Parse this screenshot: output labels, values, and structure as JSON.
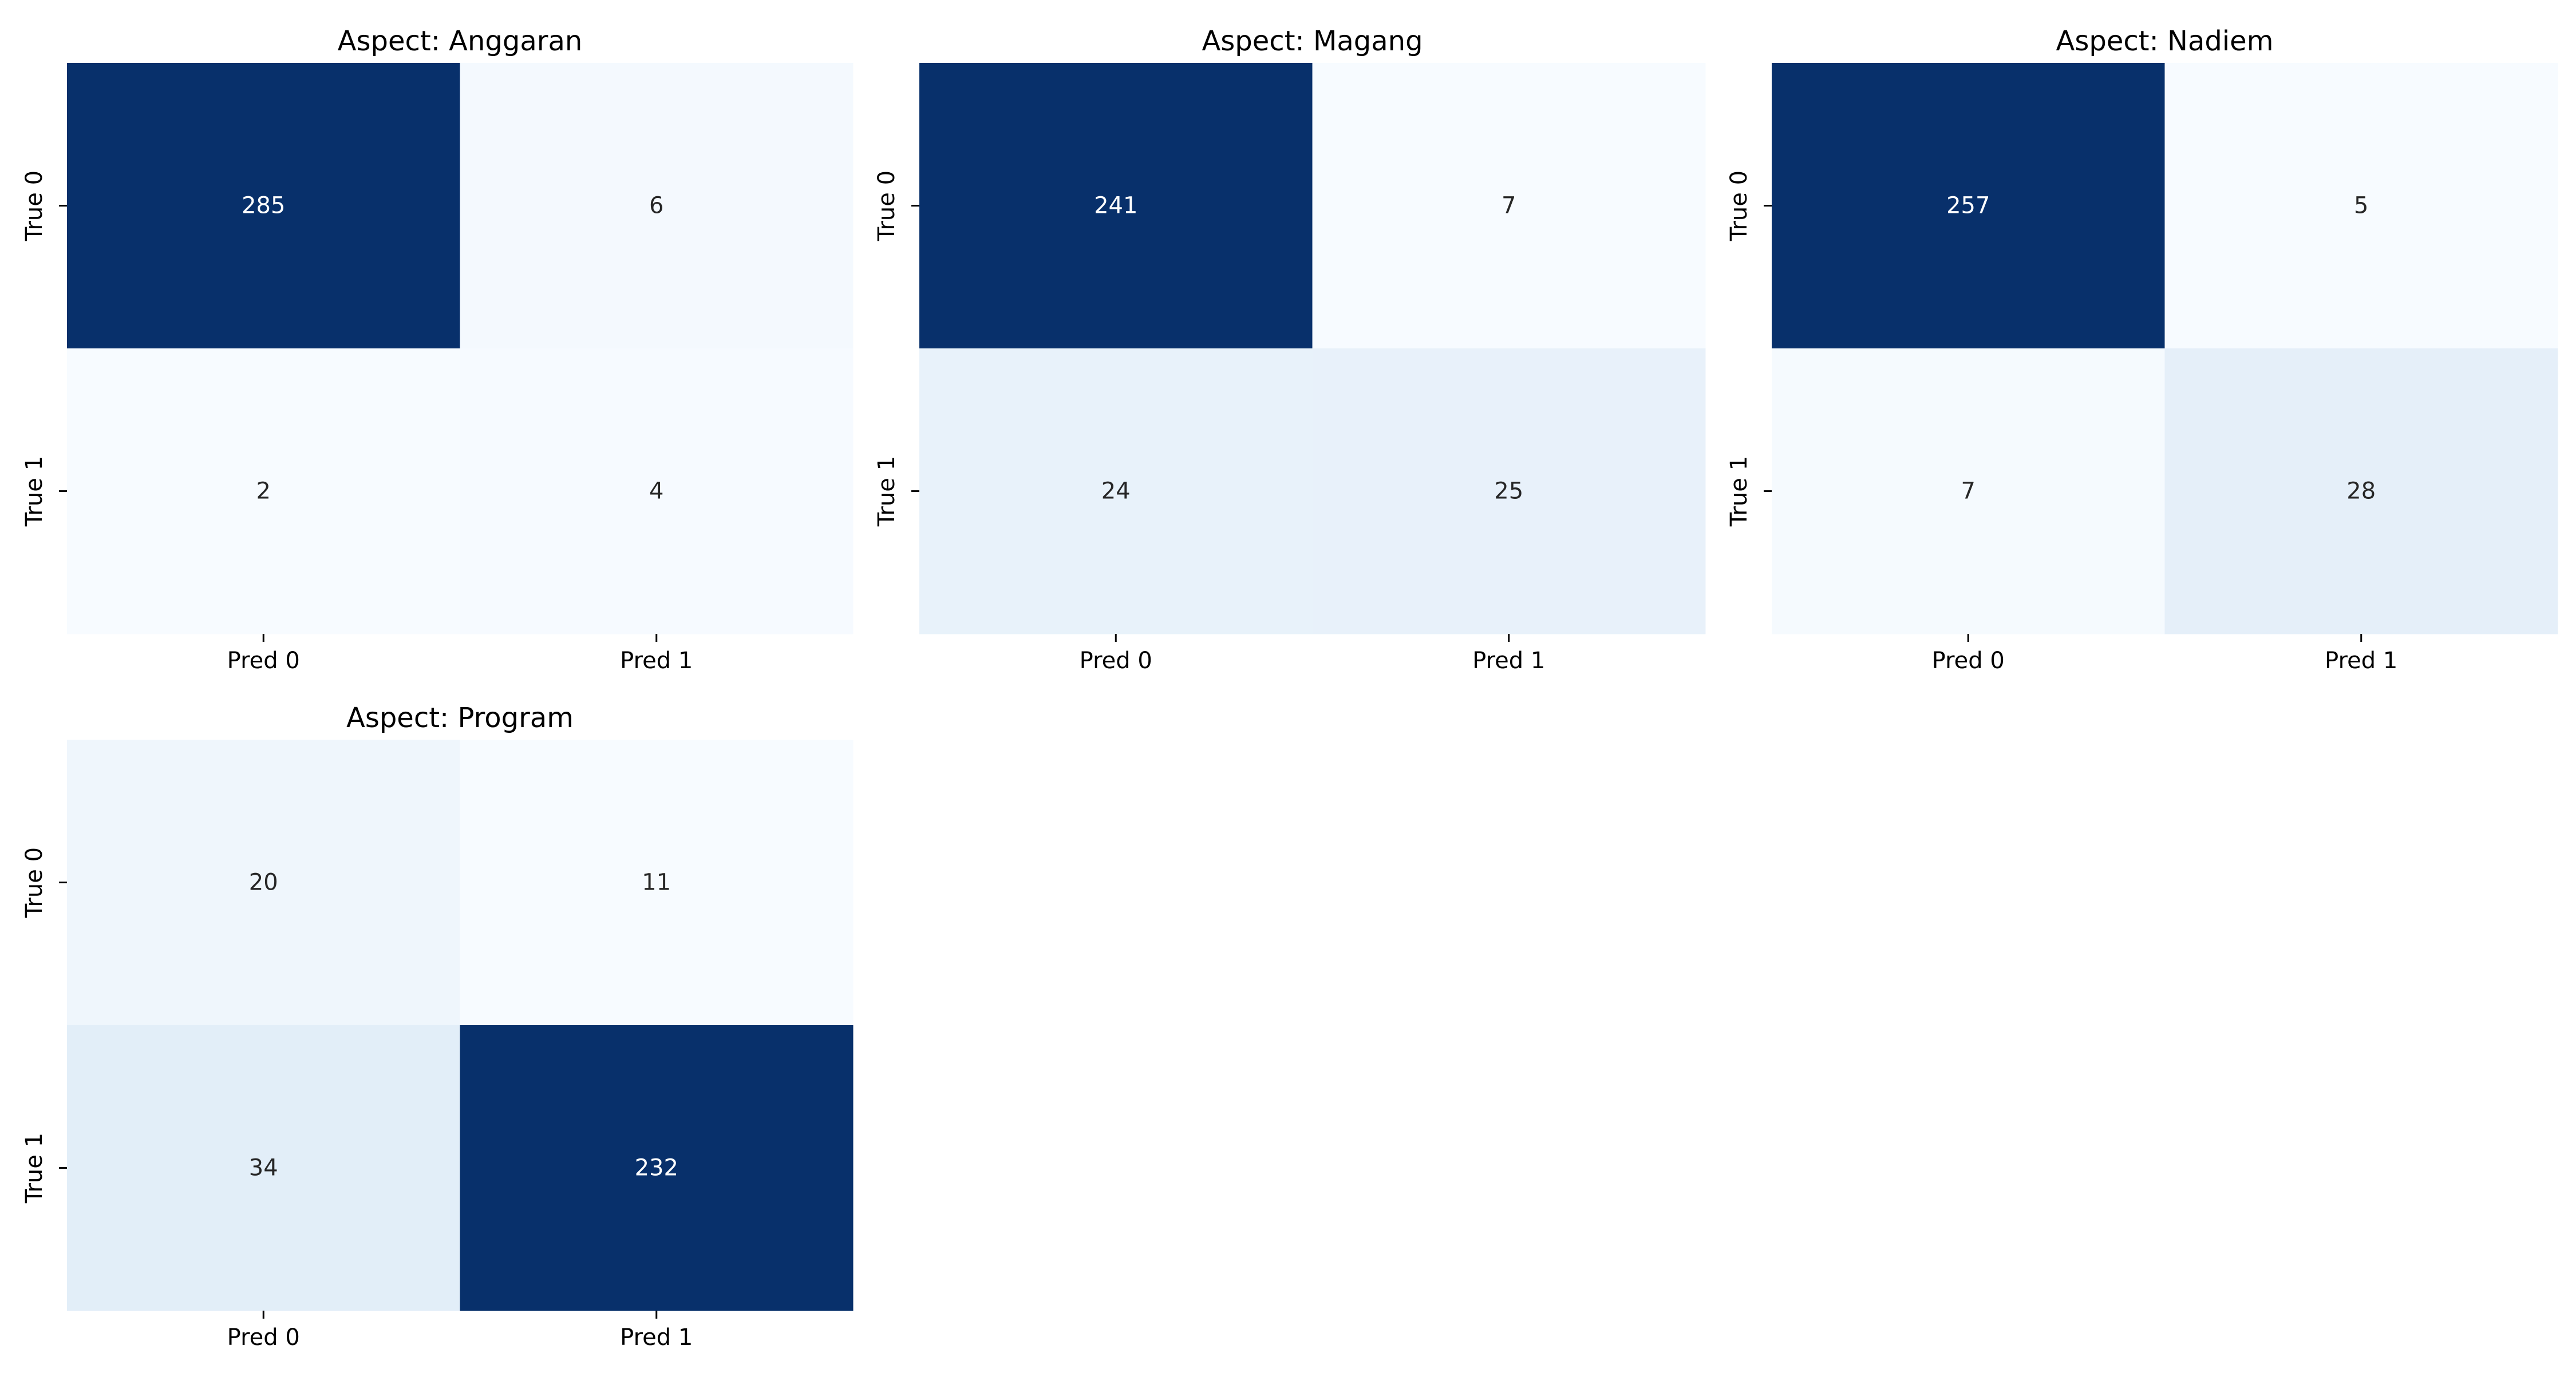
{
  "chart_data": [
    {
      "type": "heatmap",
      "title": "Aspect: Anggaran",
      "x_labels": [
        "Pred 0",
        "Pred 1"
      ],
      "y_labels": [
        "True 0",
        "True 1"
      ],
      "values": [
        [
          285,
          6
        ],
        [
          2,
          4
        ]
      ]
    },
    {
      "type": "heatmap",
      "title": "Aspect: Magang",
      "x_labels": [
        "Pred 0",
        "Pred 1"
      ],
      "y_labels": [
        "True 0",
        "True 1"
      ],
      "values": [
        [
          241,
          7
        ],
        [
          24,
          25
        ]
      ]
    },
    {
      "type": "heatmap",
      "title": "Aspect: Nadiem",
      "x_labels": [
        "Pred 0",
        "Pred 1"
      ],
      "y_labels": [
        "True 0",
        "True 1"
      ],
      "values": [
        [
          257,
          5
        ],
        [
          7,
          28
        ]
      ]
    },
    {
      "type": "heatmap",
      "title": "Aspect: Program",
      "x_labels": [
        "Pred 0",
        "Pred 1"
      ],
      "y_labels": [
        "True 0",
        "True 1"
      ],
      "values": [
        [
          20,
          11
        ],
        [
          34,
          232
        ]
      ]
    }
  ],
  "colormap": {
    "name": "Blues",
    "low_color": "#f7fbff",
    "high_color": "#08306b",
    "dark_text_color": "#262626",
    "light_text_color": "#ffffff"
  },
  "colorbar": false
}
